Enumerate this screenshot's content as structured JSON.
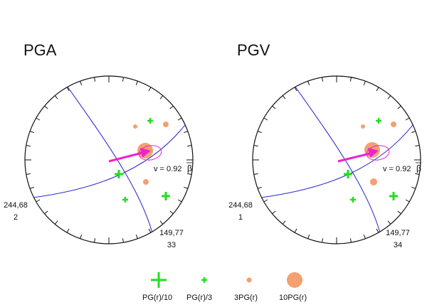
{
  "panels": [
    {
      "title": "PGA",
      "velocity_label": "v = 0.92",
      "beta_symbol": "β",
      "left_annotation": {
        "top": "244,68",
        "bottom": "2"
      },
      "right_annotation": {
        "top": "149,77",
        "bottom": "33"
      }
    },
    {
      "title": "PGV",
      "velocity_label": "v = 0.92",
      "beta_symbol": "β",
      "left_annotation": {
        "top": "244,68",
        "bottom": "1"
      },
      "right_annotation": {
        "top": "149,77",
        "bottom": "34"
      }
    }
  ],
  "legend": [
    {
      "label": "PG(r)/10",
      "symbol": "large-plus",
      "color": "#22dd22"
    },
    {
      "label": "PG(r)/3",
      "symbol": "small-plus",
      "color": "#22dd22"
    },
    {
      "label": "3PG(r)",
      "symbol": "small-dot",
      "color": "#f4a070"
    },
    {
      "label": "10PG(r)",
      "symbol": "large-dot",
      "color": "#f4a070"
    }
  ],
  "colors": {
    "great_circle": "#2222cc",
    "arrow": "#ee22cc",
    "ellipse": "#ee22cc",
    "plus": "#22dd22",
    "dot": "#f4a070"
  }
}
